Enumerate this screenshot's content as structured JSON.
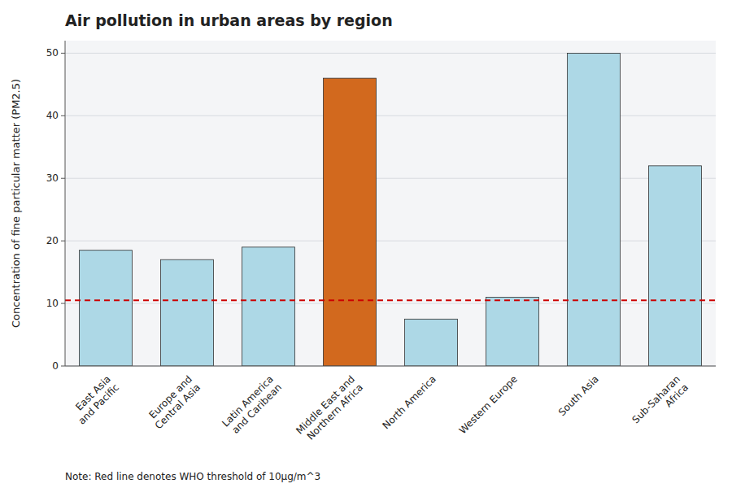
{
  "chart_data": {
    "type": "bar",
    "title": "Air pollution in urban areas by region",
    "ylabel": "Concentration of fine particular matter (PM2.5)",
    "note": "Note: Red line denotes WHO threshold of 10μg/m^3",
    "categories": [
      "East Asia\nand Pacific",
      "Europe and\nCentral Asia",
      "Latin America\nand Caribean",
      "Middle East and\nNorthern Africa",
      "North America",
      "Western Europe",
      "South Asia",
      "Sub-Saharan\nAfrica"
    ],
    "values": [
      18.5,
      17,
      19,
      46,
      7.5,
      11,
      50,
      32
    ],
    "colors": [
      "#add8e6",
      "#add8e6",
      "#add8e6",
      "#d2691e",
      "#add8e6",
      "#add8e6",
      "#add8e6",
      "#add8e6"
    ],
    "reference_line": {
      "value": 10.5,
      "color": "#cc0000",
      "line_style": "dashed"
    },
    "ylim": [
      0,
      52
    ],
    "yticks": [
      0,
      10,
      20,
      30,
      40,
      50
    ],
    "grid": true
  }
}
